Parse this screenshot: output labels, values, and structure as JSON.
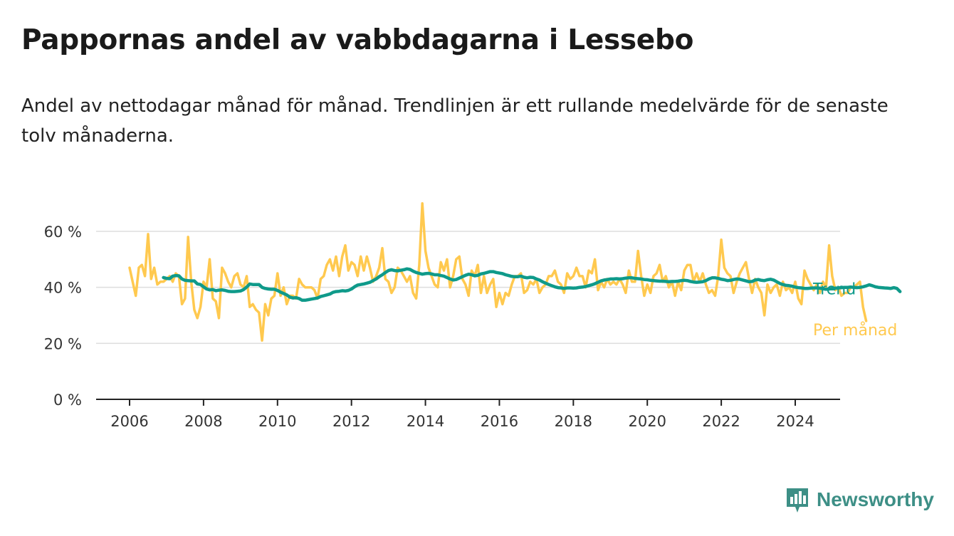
{
  "header": {
    "title": "Pappornas andel av vabbdagarna i Lessebo",
    "subtitle": "Andel av nettodagar månad för månad. Trendlinjen är ett rullande medelvärde för de senaste tolv månaderna."
  },
  "brand": {
    "name": "Newsworthy",
    "icon": "newsworthy-logo-icon",
    "color": "#3d8f86"
  },
  "colors": {
    "trend": "#0f9a8a",
    "monthly": "#ffc94f",
    "grid": "#dddddd",
    "axis": "#222222"
  },
  "chart_data": {
    "type": "line",
    "title": "Pappornas andel av vabbdagarna i Lessebo",
    "xlabel": "",
    "ylabel": "",
    "xlim": [
      2005.5,
      2025.6
    ],
    "ylim": [
      0,
      70
    ],
    "x_ticks": [
      2006,
      2008,
      2010,
      2012,
      2014,
      2016,
      2018,
      2020,
      2022,
      2024
    ],
    "x_tick_labels": [
      "2006",
      "2008",
      "2010",
      "2012",
      "2014",
      "2016",
      "2018",
      "2020",
      "2022",
      "2024"
    ],
    "y_ticks": [
      0,
      20,
      40,
      60
    ],
    "y_tick_labels": [
      "0 %",
      "20 %",
      "40 %",
      "60 %"
    ],
    "grid": "horizontal",
    "series": [
      {
        "name": "Per månad",
        "label": "Per månad",
        "color": "#ffc94f",
        "x_start": 2006.0,
        "step_months": 1,
        "values": [
          47,
          42,
          37,
          47,
          48,
          44,
          59,
          43,
          47,
          41,
          42,
          42,
          43,
          44,
          42,
          45,
          44,
          34,
          36,
          58,
          42,
          32,
          29,
          33,
          42,
          40,
          50,
          36,
          35,
          29,
          47,
          45,
          42,
          40,
          44,
          45,
          41,
          40,
          44,
          33,
          34,
          32,
          31,
          21,
          34,
          30,
          36,
          37,
          45,
          37,
          40,
          34,
          37,
          37,
          36,
          43,
          41,
          40,
          40,
          40,
          39,
          36,
          43,
          44,
          48,
          50,
          46,
          51,
          44,
          51,
          55,
          46,
          49,
          48,
          44,
          51,
          46,
          51,
          47,
          42,
          44,
          47,
          54,
          43,
          42,
          38,
          40,
          47,
          46,
          44,
          42,
          44,
          38,
          36,
          48,
          70,
          53,
          47,
          44,
          41,
          40,
          49,
          46,
          50,
          40,
          44,
          50,
          51,
          43,
          41,
          37,
          46,
          44,
          48,
          38,
          44,
          38,
          41,
          43,
          33,
          38,
          34,
          38,
          37,
          41,
          44,
          44,
          45,
          38,
          39,
          42,
          41,
          43,
          38,
          40,
          41,
          44,
          44,
          46,
          42,
          41,
          38,
          45,
          43,
          44,
          47,
          44,
          44,
          40,
          46,
          45,
          50,
          39,
          42,
          40,
          43,
          41,
          42,
          41,
          43,
          41,
          38,
          46,
          42,
          42,
          53,
          44,
          37,
          41,
          38,
          44,
          45,
          48,
          42,
          44,
          40,
          42,
          37,
          42,
          39,
          46,
          48,
          48,
          42,
          45,
          42,
          45,
          41,
          38,
          39,
          37,
          44,
          57,
          47,
          45,
          44,
          38,
          42,
          45,
          47,
          49,
          43,
          38,
          43,
          40,
          38,
          30,
          41,
          38,
          40,
          41,
          37,
          42,
          39,
          40,
          38,
          42,
          36,
          34,
          46,
          43,
          41,
          39,
          41,
          38,
          42,
          40,
          55,
          44,
          39,
          40,
          37,
          38,
          38,
          40,
          40,
          41,
          42,
          33,
          28
        ]
      },
      {
        "name": "Trend",
        "label": "Trend",
        "color": "#0f9a8a",
        "x_start": 2006.9167,
        "step_months": 1,
        "values": [
          43.5,
          43.2,
          43.1,
          44.0,
          44.2,
          44.1,
          43.0,
          42.5,
          42.4,
          42.3,
          42.3,
          41.2,
          41.0,
          40.2,
          39.4,
          39.1,
          39.2,
          38.8,
          39.0,
          39.1,
          38.9,
          38.6,
          38.5,
          38.5,
          38.6,
          38.7,
          39.2,
          40.1,
          41.2,
          41.0,
          41.0,
          41.0,
          40.0,
          39.6,
          39.4,
          39.3,
          39.3,
          38.9,
          38.3,
          37.8,
          37.3,
          36.5,
          36.2,
          36.3,
          36.0,
          35.4,
          35.4,
          35.6,
          35.8,
          36.0,
          36.2,
          36.7,
          37.0,
          37.3,
          37.6,
          38.2,
          38.5,
          38.6,
          38.8,
          38.7,
          38.9,
          39.4,
          40.2,
          40.8,
          41.0,
          41.2,
          41.5,
          41.8,
          42.4,
          43.0,
          43.8,
          44.5,
          45.3,
          46.0,
          46.3,
          46.0,
          45.9,
          46.1,
          46.3,
          46.6,
          46.4,
          45.8,
          45.3,
          45.0,
          44.7,
          44.9,
          45.0,
          44.8,
          44.5,
          44.5,
          44.2,
          44.0,
          43.5,
          43.0,
          42.6,
          42.8,
          43.3,
          43.8,
          44.3,
          44.7,
          44.5,
          44.1,
          44.3,
          44.8,
          45.0,
          45.3,
          45.6,
          45.6,
          45.3,
          45.1,
          44.9,
          44.5,
          44.2,
          43.9,
          43.8,
          43.8,
          44.0,
          43.6,
          43.4,
          43.6,
          43.5,
          43.0,
          42.6,
          42.0,
          41.5,
          41.0,
          40.6,
          40.2,
          39.9,
          39.8,
          39.6,
          39.8,
          39.8,
          39.7,
          39.8,
          40.0,
          40.1,
          40.3,
          40.6,
          40.9,
          41.3,
          41.8,
          42.3,
          42.6,
          42.8,
          43.0,
          43.0,
          43.1,
          43.0,
          43.1,
          43.3,
          43.4,
          43.4,
          43.2,
          43.1,
          43.0,
          42.8,
          42.7,
          42.5,
          42.4,
          42.3,
          42.2,
          42.2,
          42.1,
          42.0,
          42.1,
          42.1,
          42.2,
          42.4,
          42.5,
          42.4,
          42.1,
          41.9,
          41.8,
          41.9,
          42.0,
          42.4,
          43.0,
          43.4,
          43.4,
          43.2,
          42.9,
          42.7,
          42.4,
          42.5,
          42.8,
          43.0,
          42.9,
          42.6,
          42.3,
          42.0,
          42.1,
          42.6,
          42.8,
          42.5,
          42.4,
          42.7,
          42.9,
          42.6,
          42.0,
          41.4,
          41.0,
          40.7,
          40.6,
          40.4,
          40.1,
          39.9,
          39.8,
          39.6,
          39.6,
          39.7,
          39.8,
          39.8,
          39.7,
          39.5,
          39.3,
          39.4,
          39.6,
          39.7,
          39.8,
          39.9,
          40.0,
          40.0,
          40.1,
          40.0,
          39.9,
          40.0,
          40.2,
          40.5,
          40.9,
          40.6,
          40.2,
          40.0,
          39.9,
          39.8,
          39.7,
          39.6,
          39.9,
          39.6,
          38.5
        ]
      }
    ]
  }
}
